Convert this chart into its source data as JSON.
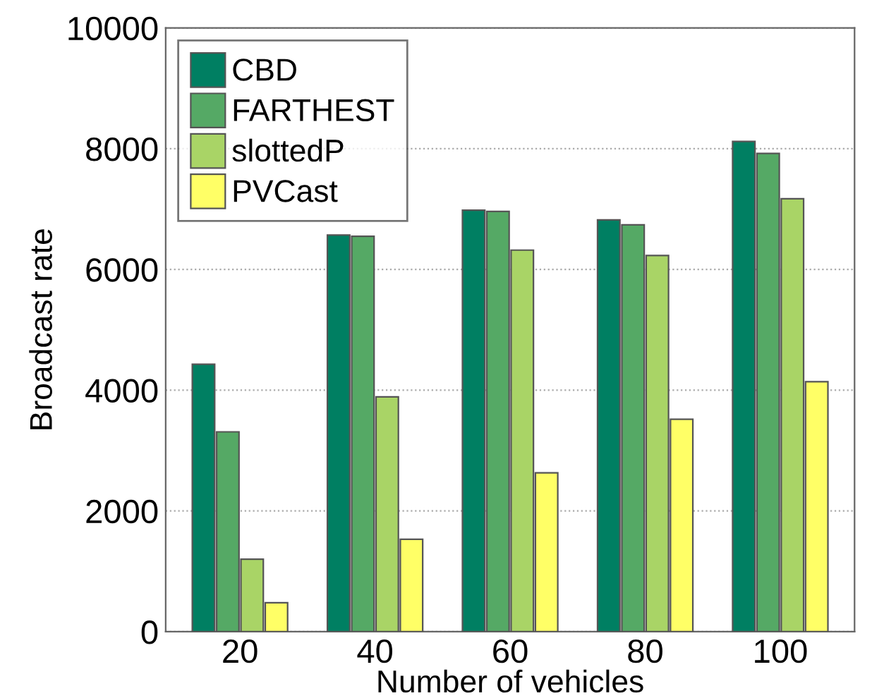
{
  "chart_data": {
    "type": "bar",
    "xlabel": "Number of vehicles",
    "ylabel": "Broadcast rate",
    "categories": [
      "20",
      "40",
      "60",
      "80",
      "100"
    ],
    "series": [
      {
        "name": "CBD",
        "color": "#007f62",
        "values": [
          4430,
          6570,
          6980,
          6820,
          8120
        ]
      },
      {
        "name": "FARTHEST",
        "color": "#55a965",
        "values": [
          3310,
          6550,
          6960,
          6740,
          7920
        ]
      },
      {
        "name": "slottedP",
        "color": "#a9d466",
        "values": [
          1200,
          3890,
          6320,
          6230,
          7170
        ]
      },
      {
        "name": "PVCast",
        "color": "#ffff66",
        "values": [
          480,
          1530,
          2630,
          3520,
          4140
        ]
      }
    ],
    "ylim": [
      0,
      10000
    ],
    "yticks": [
      0,
      2000,
      4000,
      6000,
      8000,
      10000
    ],
    "grid": "y",
    "legend": "top left"
  }
}
